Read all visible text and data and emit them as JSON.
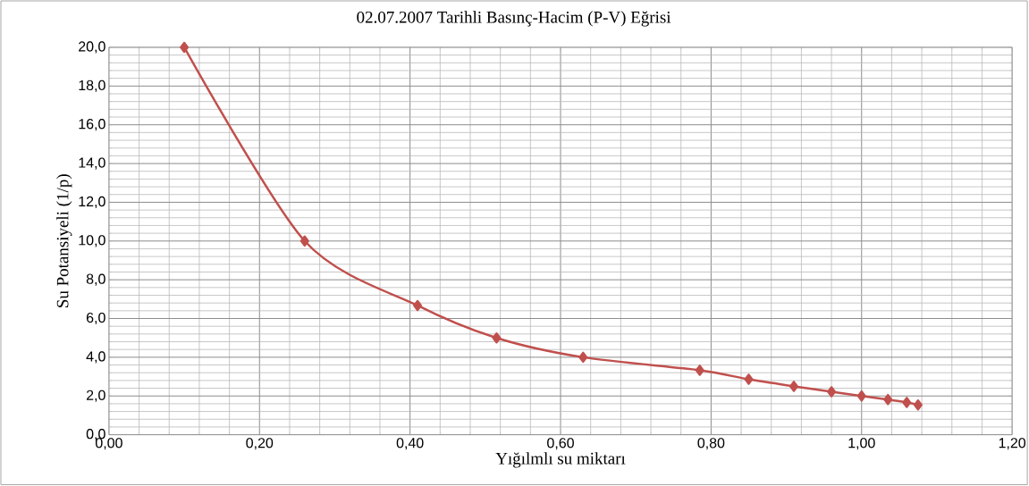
{
  "chart_data": {
    "type": "line",
    "title": "02.07.2007  Tarihli Basınç-Hacim  (P-V)  Eğrisi",
    "xlabel": "Yığılmlı su miktarı",
    "ylabel": "Su Potansiyeli (1/p)",
    "series": [
      {
        "color": "#c0504d",
        "x": [
          0.1,
          0.26,
          0.41,
          0.515,
          0.63,
          0.785,
          0.85,
          0.91,
          0.96,
          1.0,
          1.035,
          1.06,
          1.075
        ],
        "values": [
          20.0,
          10.0,
          6.67,
          5.0,
          4.0,
          3.33,
          2.86,
          2.5,
          2.22,
          2.0,
          1.82,
          1.67,
          1.54
        ]
      }
    ],
    "xlim": [
      0,
      1.2
    ],
    "ylim": [
      0,
      20
    ],
    "xticks": [
      {
        "value": 0,
        "label": "0,00"
      },
      {
        "value": 0.2,
        "label": "0,20"
      },
      {
        "value": 0.4,
        "label": "0,40"
      },
      {
        "value": 0.6,
        "label": "0,60"
      },
      {
        "value": 0.8,
        "label": "0,80"
      },
      {
        "value": 1.0,
        "label": "1,00"
      },
      {
        "value": 1.2,
        "label": "1,20"
      }
    ],
    "yticks": [
      {
        "value": 0,
        "label": "0,0"
      },
      {
        "value": 2,
        "label": "2,0"
      },
      {
        "value": 4,
        "label": "4,0"
      },
      {
        "value": 6,
        "label": "6,0"
      },
      {
        "value": 8,
        "label": "8,0"
      },
      {
        "value": 10,
        "label": "10,0"
      },
      {
        "value": 12,
        "label": "12,0"
      },
      {
        "value": 14,
        "label": "14,0"
      },
      {
        "value": 16,
        "label": "16,0"
      },
      {
        "value": 18,
        "label": "18,0"
      },
      {
        "value": 20,
        "label": "20,0"
      }
    ],
    "grid": true,
    "marker": "diamond",
    "line_style": "solid"
  }
}
